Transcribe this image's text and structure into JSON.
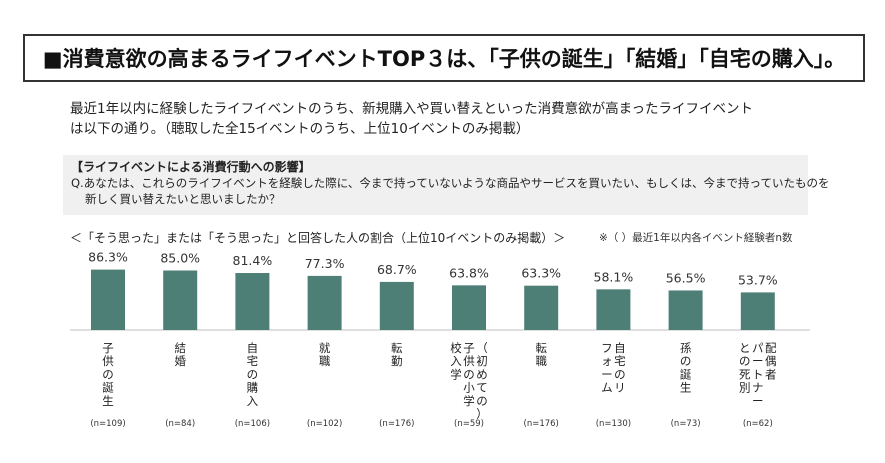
{
  "headline": "■消費意欲の高まるライフイベントTOP３は、「子供の誕生」「結婚」「自宅の購入」。",
  "intro": {
    "line1": "最近1年以内に経験したライフイベントのうち、新規購入や買い替えといった消費意欲が高まったライフイベント",
    "line2": "は以下の通り。（聴取した全15イベントのうち、上位10イベントのみ掲載）"
  },
  "question": {
    "title": "【ライフイベントによる消費行動への影響】",
    "line1": "Q.あなたは、これらのライフイベントを経験した際に、今まで持っていないような商品やサービスを買いたい、もしくは、今まで持っていたものを",
    "line2": "新しく買い替えたいと思いましたか？"
  },
  "caption": "＜「そう思った」または「そう思った」と回答した人の割合（上位10イベントのみ掲載）＞",
  "note": "※（ ）最近1年以内各イベント経験者n数",
  "colors": {
    "bar": "#4e7f77",
    "axis": "#bfbfbf",
    "text": "#222222"
  },
  "chart_data": {
    "type": "bar",
    "unit": "%",
    "ylim": [
      0,
      100
    ],
    "grid": false,
    "legend": "none",
    "categories": [
      {
        "label_lines": [
          "子供の誕生"
        ],
        "n": "(n=109)"
      },
      {
        "label_lines": [
          "結婚"
        ],
        "n": "(n=84)"
      },
      {
        "label_lines": [
          "自宅の購入"
        ],
        "n": "(n=106)"
      },
      {
        "label_lines": [
          "就職"
        ],
        "n": "(n=102)"
      },
      {
        "label_lines": [
          "転勤"
        ],
        "n": "(n=176)"
      },
      {
        "label_lines": [
          "（初めての）",
          "子供の小学",
          "校入学"
        ],
        "n": "(n=59)"
      },
      {
        "label_lines": [
          "転職"
        ],
        "n": "(n=176)"
      },
      {
        "label_lines": [
          "自宅のリ",
          "フォーム"
        ],
        "n": "(n=130)"
      },
      {
        "label_lines": [
          "孫の誕生"
        ],
        "n": "(n=73)"
      },
      {
        "label_lines": [
          "配偶者",
          "パートナー",
          "との死別"
        ],
        "n": "(n=62)"
      }
    ],
    "values": [
      86.3,
      85.0,
      81.4,
      77.3,
      68.7,
      63.8,
      63.3,
      58.1,
      56.5,
      53.7
    ],
    "value_labels": [
      "86.3%",
      "85.0%",
      "81.4%",
      "77.3%",
      "68.7%",
      "63.8%",
      "63.3%",
      "58.1%",
      "56.5%",
      "53.7%"
    ]
  }
}
